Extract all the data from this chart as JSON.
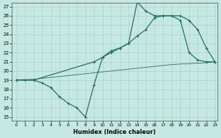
{
  "xlabel": "Humidex (Indice chaleur)",
  "bg_color": "#c5e8e2",
  "line_color": "#1a6e62",
  "grid_color": "#adc8c4",
  "xlim_min": -0.5,
  "xlim_max": 23.3,
  "ylim_min": 14.6,
  "ylim_max": 27.4,
  "xticks": [
    0,
    1,
    2,
    3,
    4,
    5,
    6,
    7,
    8,
    9,
    10,
    11,
    12,
    13,
    14,
    15,
    16,
    17,
    18,
    19,
    20,
    21,
    22,
    23
  ],
  "yticks": [
    15,
    16,
    17,
    18,
    19,
    20,
    21,
    22,
    23,
    24,
    25,
    26,
    27
  ],
  "line1_x": [
    0,
    1,
    2,
    3,
    4,
    5,
    6,
    7,
    8,
    9,
    10,
    11,
    12,
    13,
    14,
    15,
    16,
    17,
    18,
    19,
    20,
    21,
    22,
    23
  ],
  "line1_y": [
    19,
    19,
    19,
    18.7,
    18.2,
    17.2,
    16.5,
    16.0,
    15.0,
    18.5,
    21.5,
    22.0,
    22.5,
    23.0,
    27.5,
    26.5,
    26.0,
    26.0,
    26.0,
    25.5,
    22.0,
    21.2,
    21.0,
    21.0
  ],
  "line2_x": [
    0,
    2,
    9,
    10,
    11,
    12,
    13,
    14,
    15,
    16,
    17,
    18,
    19,
    20,
    21,
    22,
    23
  ],
  "line2_y": [
    19,
    19,
    21.0,
    21.5,
    22.2,
    22.5,
    23.0,
    23.8,
    24.5,
    25.8,
    26.0,
    26.0,
    26.0,
    25.5,
    24.5,
    22.5,
    21.0
  ],
  "line3_x": [
    0,
    1,
    2,
    3,
    4,
    5,
    6,
    7,
    8,
    9,
    10,
    11,
    12,
    13,
    14,
    15,
    16,
    17,
    18,
    19,
    20,
    21,
    22,
    23
  ],
  "line3_y": [
    19.0,
    19.05,
    19.1,
    19.2,
    19.3,
    19.4,
    19.5,
    19.6,
    19.7,
    19.8,
    19.9,
    20.0,
    20.1,
    20.2,
    20.3,
    20.4,
    20.5,
    20.6,
    20.7,
    20.75,
    20.8,
    20.85,
    20.9,
    21.0
  ]
}
